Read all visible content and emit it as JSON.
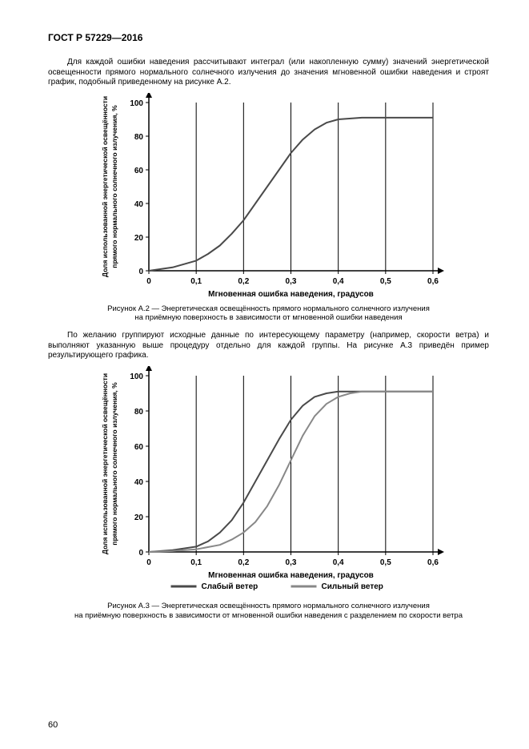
{
  "doc_header": "ГОСТ Р 57229—2016",
  "para1": "Для каждой ошибки наведения рассчитывают интеграл (или накопленную сумму) значений энергетической освещенности прямого нормального солнечного излучения до значения мгновенной ошибки наведения и строят график, подобный приведенному на рисунке А.2.",
  "para2": "По желанию группируют исходные данные по интересующему параметру (например, скорости ветра) и выполняют указанную выше процедуру отдельно для каждой группы. На рисунке А.3 приведён пример результирующего графика.",
  "caption1_l1": "Рисунок А.2 — Энергетическая освещённость прямого нормального солнечного излучения",
  "caption1_l2": "на приёмную поверхность в зависимости от мгновенной ошибки наведения",
  "caption2_l1": "Рисунок А.3 — Энергетическая освещённость прямого нормального солнечного излучения",
  "caption2_l2": "на приёмную поверхность в зависимости от мгновенной ошибки наведения с разделением по скорости ветра",
  "page_number": "60",
  "charts": {
    "xlabel": "Мгновенная ошибка наведения, градусов",
    "ylabel": "Доля использованной энергетической освещённости\nпрямого нормального солнечного излучения, %",
    "xlim": [
      0,
      0.6
    ],
    "ylim": [
      0,
      100
    ],
    "xticks": [
      0,
      0.1,
      0.2,
      0.3,
      0.4,
      0.5,
      0.6
    ],
    "xtick_labels": [
      "0",
      "0,1",
      "0,2",
      "0,3",
      "0,4",
      "0,5",
      "0,6"
    ],
    "yticks": [
      0,
      20,
      40,
      60,
      80,
      100
    ],
    "ytick_labels": [
      "0",
      "20",
      "40",
      "60",
      "80",
      "100"
    ],
    "grid_color": "#000000",
    "axis_color": "#000000",
    "background_color": "#ffffff",
    "tick_fontsize": 10,
    "label_fontsize": 10,
    "line_width": 2
  },
  "chart1": {
    "type": "line",
    "series": [
      {
        "name": "curve",
        "color": "#4a4a4a",
        "width": 2,
        "data": [
          [
            0,
            0
          ],
          [
            0.05,
            2
          ],
          [
            0.1,
            6
          ],
          [
            0.125,
            10
          ],
          [
            0.15,
            15
          ],
          [
            0.175,
            22
          ],
          [
            0.2,
            30
          ],
          [
            0.225,
            40
          ],
          [
            0.25,
            50
          ],
          [
            0.275,
            60
          ],
          [
            0.3,
            70
          ],
          [
            0.325,
            78
          ],
          [
            0.35,
            84
          ],
          [
            0.375,
            88
          ],
          [
            0.4,
            90
          ],
          [
            0.45,
            91
          ],
          [
            0.5,
            91
          ],
          [
            0.55,
            91
          ],
          [
            0.6,
            91
          ]
        ]
      }
    ]
  },
  "chart2": {
    "type": "line",
    "legend": [
      {
        "label": "Слабый ветер",
        "color": "#4a4a4a"
      },
      {
        "label": "Сильный ветер",
        "color": "#888888"
      }
    ],
    "series": [
      {
        "name": "weak-wind",
        "color": "#4a4a4a",
        "width": 2,
        "data": [
          [
            0,
            0
          ],
          [
            0.05,
            1
          ],
          [
            0.1,
            3
          ],
          [
            0.125,
            6
          ],
          [
            0.15,
            11
          ],
          [
            0.175,
            18
          ],
          [
            0.2,
            28
          ],
          [
            0.225,
            40
          ],
          [
            0.25,
            52
          ],
          [
            0.275,
            64
          ],
          [
            0.3,
            75
          ],
          [
            0.325,
            83
          ],
          [
            0.35,
            88
          ],
          [
            0.375,
            90
          ],
          [
            0.4,
            91
          ],
          [
            0.45,
            91
          ],
          [
            0.5,
            91
          ],
          [
            0.55,
            91
          ],
          [
            0.6,
            91
          ]
        ]
      },
      {
        "name": "strong-wind",
        "color": "#888888",
        "width": 2,
        "data": [
          [
            0,
            0
          ],
          [
            0.05,
            0.5
          ],
          [
            0.1,
            1.5
          ],
          [
            0.15,
            4
          ],
          [
            0.175,
            7
          ],
          [
            0.2,
            11
          ],
          [
            0.225,
            17
          ],
          [
            0.25,
            26
          ],
          [
            0.275,
            38
          ],
          [
            0.3,
            52
          ],
          [
            0.325,
            66
          ],
          [
            0.35,
            77
          ],
          [
            0.375,
            84
          ],
          [
            0.4,
            88
          ],
          [
            0.425,
            90
          ],
          [
            0.45,
            91
          ],
          [
            0.5,
            91
          ],
          [
            0.55,
            91
          ],
          [
            0.6,
            91
          ]
        ]
      }
    ]
  }
}
